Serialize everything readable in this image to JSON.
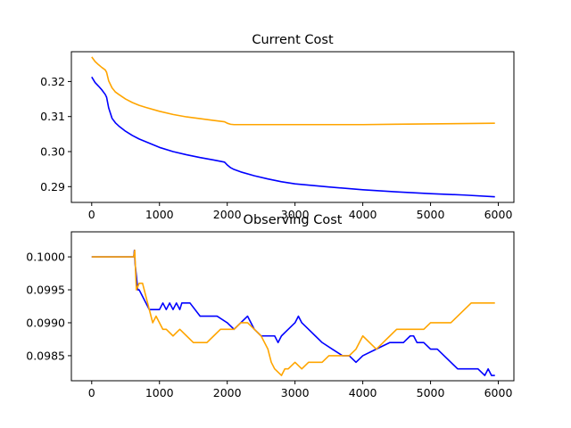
{
  "chart_data": [
    {
      "type": "line",
      "title": "Current Cost",
      "xlim": [
        -300,
        6230
      ],
      "ylim": [
        0.2855,
        0.3285
      ],
      "xticks": [
        0,
        1000,
        2000,
        3000,
        4000,
        5000,
        6000
      ],
      "xtick_labels": [
        "0",
        "1000",
        "2000",
        "3000",
        "4000",
        "5000",
        "6000"
      ],
      "yticks": [
        0.29,
        0.3,
        0.31,
        0.32
      ],
      "ytick_labels": [
        "0.29",
        "0.30",
        "0.31",
        "0.32"
      ],
      "grid": false,
      "series": [
        {
          "color": "#0000ff",
          "x": [
            0,
            50,
            100,
            150,
            200,
            220,
            250,
            300,
            350,
            400,
            500,
            600,
            700,
            800,
            1000,
            1200,
            1400,
            1600,
            1800,
            1960,
            2000,
            2050,
            2100,
            2200,
            2400,
            2600,
            2800,
            3000,
            3500,
            4000,
            4500,
            5000,
            5500,
            5950
          ],
          "y": [
            0.3213,
            0.3197,
            0.3187,
            0.3176,
            0.3163,
            0.3155,
            0.3125,
            0.3095,
            0.3082,
            0.3073,
            0.3058,
            0.3046,
            0.3036,
            0.3028,
            0.3012,
            0.3,
            0.2991,
            0.2983,
            0.2976,
            0.297,
            0.2962,
            0.2954,
            0.2949,
            0.2942,
            0.2931,
            0.2922,
            0.2914,
            0.2908,
            0.2899,
            0.2891,
            0.2885,
            0.288,
            0.2876,
            0.2871
          ]
        },
        {
          "color": "#ffa500",
          "x": [
            0,
            50,
            100,
            150,
            200,
            220,
            250,
            300,
            350,
            400,
            500,
            600,
            700,
            800,
            1000,
            1200,
            1400,
            1600,
            1800,
            1960,
            2000,
            2050,
            2100,
            2200,
            2400,
            2600,
            2800,
            3000,
            3500,
            4000,
            4500,
            5000,
            5500,
            5950
          ],
          "y": [
            0.327,
            0.3257,
            0.3248,
            0.324,
            0.3233,
            0.3226,
            0.3202,
            0.3182,
            0.317,
            0.3163,
            0.315,
            0.314,
            0.3132,
            0.3126,
            0.3115,
            0.3106,
            0.3099,
            0.3094,
            0.3089,
            0.3085,
            0.3081,
            0.3078,
            0.3077,
            0.3077,
            0.3077,
            0.3077,
            0.3077,
            0.3077,
            0.3077,
            0.3077,
            0.3078,
            0.3079,
            0.308,
            0.3081
          ]
        }
      ]
    },
    {
      "type": "line",
      "title": "Observing Cost",
      "xlim": [
        -300,
        6230
      ],
      "ylim": [
        0.09812,
        0.10038
      ],
      "xticks": [
        0,
        1000,
        2000,
        3000,
        4000,
        5000,
        6000
      ],
      "xtick_labels": [
        "0",
        "1000",
        "2000",
        "3000",
        "4000",
        "5000",
        "6000"
      ],
      "yticks": [
        0.0985,
        0.099,
        0.0995,
        0.1
      ],
      "ytick_labels": [
        "0.0985",
        "0.0990",
        "0.0995",
        "0.1000"
      ],
      "grid": false,
      "series": [
        {
          "color": "#0000ff",
          "x": [
            0,
            620,
            630,
            640,
            650,
            680,
            700,
            750,
            800,
            850,
            900,
            1000,
            1050,
            1100,
            1150,
            1200,
            1250,
            1300,
            1330,
            1380,
            1450,
            1600,
            1700,
            1850,
            2000,
            2100,
            2200,
            2300,
            2350,
            2400,
            2500,
            2600,
            2700,
            2750,
            2800,
            2900,
            3000,
            3050,
            3100,
            3200,
            3300,
            3400,
            3550,
            3700,
            3800,
            3900,
            4000,
            4200,
            4400,
            4500,
            4600,
            4700,
            4750,
            4800,
            4900,
            5000,
            5100,
            5200,
            5300,
            5400,
            5550,
            5600,
            5700,
            5800,
            5850,
            5900,
            5950
          ],
          "y": [
            0.1,
            0.1,
            0.1001,
            0.0999,
            0.0998,
            0.0995,
            0.0995,
            0.0994,
            0.0993,
            0.0992,
            0.0992,
            0.0992,
            0.0993,
            0.0992,
            0.0993,
            0.0992,
            0.0993,
            0.0992,
            0.0993,
            0.0993,
            0.0993,
            0.0991,
            0.0991,
            0.0991,
            0.099,
            0.0989,
            0.099,
            0.0991,
            0.099,
            0.0989,
            0.0988,
            0.0988,
            0.0988,
            0.0987,
            0.0988,
            0.0989,
            0.099,
            0.0991,
            0.099,
            0.0989,
            0.0988,
            0.0987,
            0.0986,
            0.0985,
            0.0985,
            0.0984,
            0.0985,
            0.0986,
            0.0987,
            0.0987,
            0.0987,
            0.0988,
            0.0988,
            0.0987,
            0.0987,
            0.0986,
            0.0986,
            0.0985,
            0.0984,
            0.0983,
            0.0983,
            0.0983,
            0.0983,
            0.0982,
            0.0983,
            0.0982,
            0.0982
          ]
        },
        {
          "color": "#ffa500",
          "x": [
            0,
            620,
            635,
            650,
            660,
            700,
            750,
            800,
            850,
            900,
            950,
            1000,
            1050,
            1100,
            1200,
            1300,
            1400,
            1500,
            1600,
            1700,
            1800,
            1900,
            2000,
            2100,
            2200,
            2300,
            2400,
            2500,
            2600,
            2650,
            2700,
            2800,
            2850,
            2900,
            3000,
            3100,
            3200,
            3300,
            3400,
            3500,
            3600,
            3700,
            3800,
            3900,
            4000,
            4100,
            4200,
            4300,
            4400,
            4500,
            4600,
            4700,
            4800,
            4900,
            5000,
            5100,
            5200,
            5300,
            5400,
            5500,
            5600,
            5700,
            5800,
            5950
          ],
          "y": [
            0.1,
            0.1,
            0.1001,
            0.0997,
            0.0995,
            0.0996,
            0.0996,
            0.0994,
            0.0992,
            0.099,
            0.0991,
            0.099,
            0.0989,
            0.0989,
            0.0988,
            0.0989,
            0.0988,
            0.0987,
            0.0987,
            0.0987,
            0.0988,
            0.0989,
            0.0989,
            0.0989,
            0.099,
            0.099,
            0.0989,
            0.0988,
            0.0986,
            0.0984,
            0.0983,
            0.0982,
            0.0983,
            0.0983,
            0.0984,
            0.0983,
            0.0984,
            0.0984,
            0.0984,
            0.0985,
            0.0985,
            0.0985,
            0.0985,
            0.0986,
            0.0988,
            0.0987,
            0.0986,
            0.0987,
            0.0988,
            0.0989,
            0.0989,
            0.0989,
            0.0989,
            0.0989,
            0.099,
            0.099,
            0.099,
            0.099,
            0.0991,
            0.0992,
            0.0993,
            0.0993,
            0.0993,
            0.0993
          ]
        }
      ]
    }
  ]
}
